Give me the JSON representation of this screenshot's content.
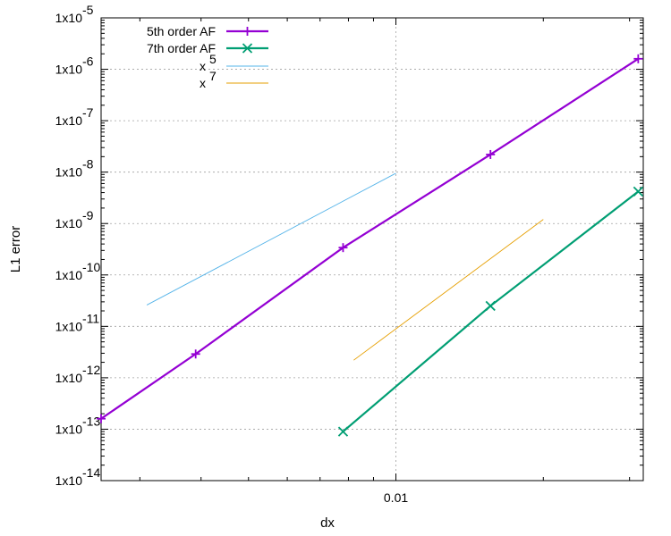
{
  "chart_data": {
    "type": "line",
    "title": "",
    "xlabel": "dx",
    "ylabel": "L1 error",
    "xscale": "log",
    "yscale": "log",
    "xlim": [
      0.0025,
      0.032
    ],
    "ylim": [
      1e-14,
      1e-05
    ],
    "grid": true,
    "legend_position": "top-left",
    "x_tick_labels": [
      "0.01"
    ],
    "y_tick_labels": [
      {
        "base": "1x10",
        "exp": "-14"
      },
      {
        "base": "1x10",
        "exp": "-13"
      },
      {
        "base": "1x10",
        "exp": "-12"
      },
      {
        "base": "1x10",
        "exp": "-11"
      },
      {
        "base": "1x10",
        "exp": "-10"
      },
      {
        "base": "1x10",
        "exp": "-9"
      },
      {
        "base": "1x10",
        "exp": "-8"
      },
      {
        "base": "1x10",
        "exp": "-7"
      },
      {
        "base": "1x10",
        "exp": "-6"
      },
      {
        "base": "1x10",
        "exp": "-5"
      }
    ],
    "series": [
      {
        "name": "5th order AF",
        "color": "#9400d3",
        "marker": "plus",
        "style": "solid-thick",
        "points": [
          {
            "x": 0.0025,
            "y": 1.6e-13
          },
          {
            "x": 0.0039,
            "y": 2.9e-12
          },
          {
            "x": 0.0078,
            "y": 3.4e-10
          },
          {
            "x": 0.0156,
            "y": 2.2e-08
          },
          {
            "x": 0.03125,
            "y": 1.6e-06
          }
        ]
      },
      {
        "name": "7th order AF",
        "color": "#009e73",
        "marker": "cross",
        "style": "solid-thick",
        "points": [
          {
            "x": 0.0078,
            "y": 9e-14
          },
          {
            "x": 0.0156,
            "y": 2.5e-11
          },
          {
            "x": 0.03125,
            "y": 4.2e-09
          }
        ]
      },
      {
        "name": "x^5",
        "legend_base": "x",
        "legend_exp": "5",
        "color": "#56b4e9",
        "marker": "none",
        "style": "thin",
        "points": [
          {
            "x": 0.0031,
            "y": 2.6e-11
          },
          {
            "x": 0.01,
            "y": 9.5e-09
          }
        ]
      },
      {
        "name": "x^7",
        "legend_base": "x",
        "legend_exp": "7",
        "color": "#e69f00",
        "marker": "none",
        "style": "thin",
        "points": [
          {
            "x": 0.0082,
            "y": 2.2e-12
          },
          {
            "x": 0.02,
            "y": 1.2e-09
          }
        ]
      }
    ]
  }
}
